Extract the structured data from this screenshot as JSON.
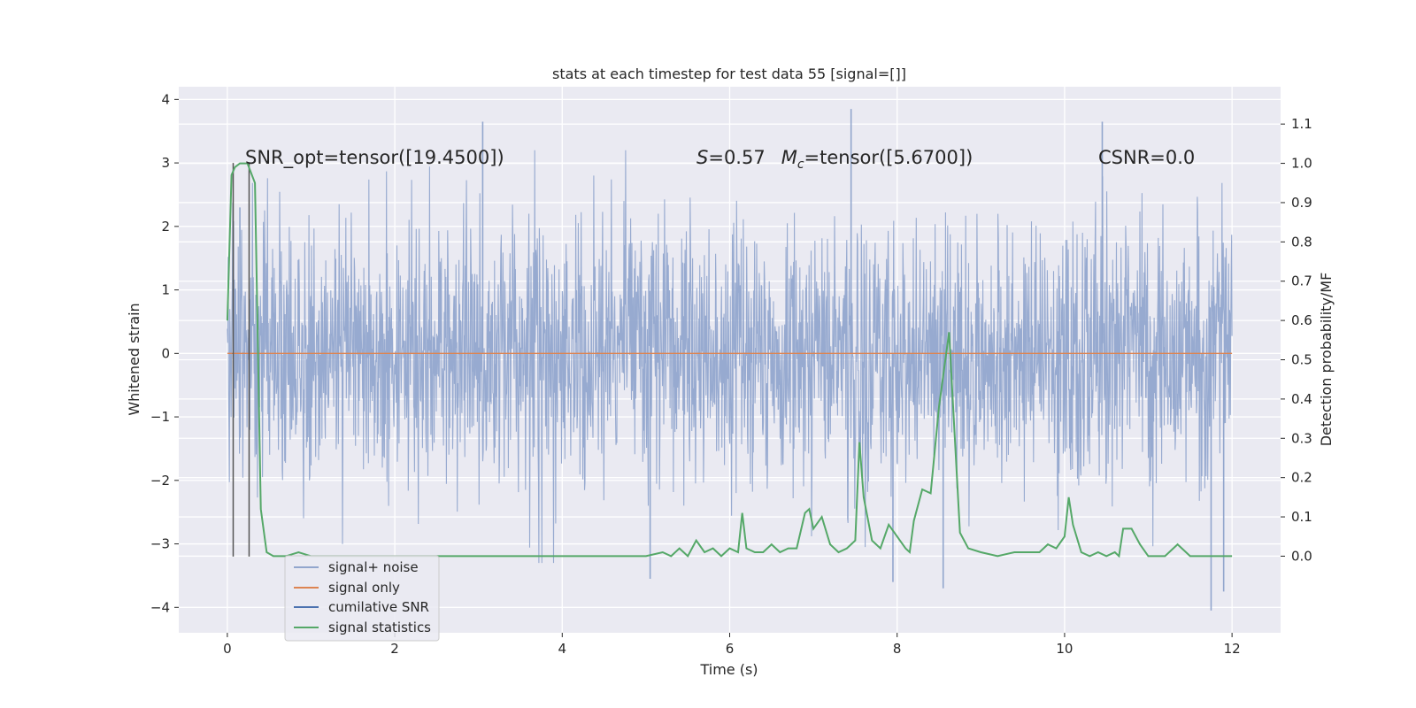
{
  "chart_data": {
    "type": "line",
    "title": "stats at each timestep for test data 55 [signal=[]]",
    "xlabel": "Time (s)",
    "ylabel": "Whitened strain",
    "y2label": "Detection probability/MF",
    "xlim": [
      -0.58,
      12.58
    ],
    "ylim": [
      -4.4,
      4.2
    ],
    "y2lim": [
      -0.195,
      1.195
    ],
    "x_ticks": [
      0,
      2,
      4,
      6,
      8,
      10,
      12
    ],
    "y_ticks": [
      -4,
      -3,
      -2,
      -1,
      0,
      1,
      2,
      3,
      4
    ],
    "y2_ticks": [
      0.0,
      0.1,
      0.2,
      0.3,
      0.4,
      0.5,
      0.6,
      0.7,
      0.8,
      0.9,
      1.0,
      1.1
    ],
    "grid": true,
    "legend_position": "lower-left",
    "legend": [
      "signal+ noise",
      "signal only",
      "cumilative SNR",
      "signal statistics"
    ],
    "annotations": {
      "snr_opt": "SNR_opt=tensor([19.4500])",
      "s_label": "S",
      "s_value": "=0.57",
      "mc_label": "M",
      "mc_sub": "c",
      "mc_value": "=tensor([5.6700])",
      "csnr": "CSNR=0.0"
    },
    "series": [
      {
        "name": "signal+ noise",
        "color": "#92a6cd",
        "x_range": [
          0,
          12
        ],
        "typical_abs_envelope": 1.2,
        "peaks": [
          [
            0.15,
            2.3
          ],
          [
            3.05,
            3.65
          ],
          [
            7.45,
            3.85
          ],
          [
            10.45,
            3.65
          ],
          [
            11.75,
            -4.05
          ],
          [
            8.55,
            -3.7
          ],
          [
            5.05,
            -3.55
          ],
          [
            7.95,
            -3.6
          ],
          [
            11.9,
            -3.75
          ]
        ]
      },
      {
        "name": "signal only",
        "color": "#dd8452",
        "x": [
          0,
          12
        ],
        "y": [
          0,
          0
        ]
      },
      {
        "name": "cumilative SNR",
        "color": "#4c72b0",
        "x": [
          0.07,
          0.07,
          0.26,
          0.26
        ],
        "y": [
          -3.2,
          3.0,
          -3.2,
          3.0
        ]
      },
      {
        "name": "signal statistics",
        "color": "#55a868",
        "axis": "right",
        "x": [
          0.0,
          0.05,
          0.09,
          0.15,
          0.24,
          0.33,
          0.4,
          0.47,
          0.55,
          0.7,
          0.85,
          1.0,
          1.3,
          1.6,
          2.0,
          3.0,
          4.0,
          4.5,
          5.0,
          5.2,
          5.3,
          5.4,
          5.5,
          5.6,
          5.7,
          5.8,
          5.9,
          6.0,
          6.1,
          6.15,
          6.2,
          6.3,
          6.4,
          6.5,
          6.6,
          6.7,
          6.8,
          6.9,
          6.95,
          7.0,
          7.1,
          7.2,
          7.3,
          7.4,
          7.5,
          7.55,
          7.6,
          7.7,
          7.8,
          7.9,
          8.0,
          8.1,
          8.15,
          8.2,
          8.3,
          8.4,
          8.5,
          8.62,
          8.75,
          8.85,
          9.0,
          9.2,
          9.4,
          9.6,
          9.7,
          9.8,
          9.9,
          10.0,
          10.05,
          10.1,
          10.2,
          10.3,
          10.4,
          10.5,
          10.6,
          10.65,
          10.7,
          10.8,
          10.9,
          11.0,
          11.2,
          11.35,
          11.5,
          11.7,
          12.0
        ],
        "y": [
          0.6,
          0.97,
          0.99,
          1.0,
          1.0,
          0.95,
          0.12,
          0.01,
          0.0,
          0.0,
          0.01,
          0.0,
          0.0,
          0.0,
          0.0,
          0.0,
          0.0,
          0.0,
          0.0,
          0.01,
          0.0,
          0.02,
          0.0,
          0.04,
          0.01,
          0.02,
          0.0,
          0.02,
          0.01,
          0.11,
          0.02,
          0.01,
          0.01,
          0.03,
          0.01,
          0.02,
          0.02,
          0.11,
          0.12,
          0.07,
          0.1,
          0.03,
          0.01,
          0.02,
          0.04,
          0.29,
          0.15,
          0.04,
          0.02,
          0.08,
          0.05,
          0.02,
          0.01,
          0.09,
          0.17,
          0.16,
          0.38,
          0.57,
          0.06,
          0.02,
          0.01,
          0.0,
          0.01,
          0.01,
          0.01,
          0.03,
          0.02,
          0.05,
          0.15,
          0.08,
          0.01,
          0.0,
          0.01,
          0.0,
          0.01,
          0.0,
          0.07,
          0.07,
          0.03,
          0.0,
          0.0,
          0.03,
          0.0,
          0.0,
          0.0
        ]
      }
    ]
  }
}
